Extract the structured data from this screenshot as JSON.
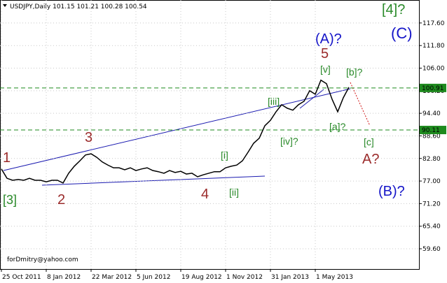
{
  "chart_data": {
    "type": "line",
    "title": "USDJPY,Daily 101.15 101.21 100.28 100.54",
    "credit": "forDmitry@yahoo.com",
    "categories": [
      "25 Oct 2011",
      null,
      null,
      null,
      null,
      null,
      null,
      null,
      "8 Jan 2012",
      null,
      null,
      null,
      null,
      null,
      null,
      null,
      "22 Mar 2012",
      null,
      null,
      null,
      null,
      null,
      null,
      null,
      "5 Jun 2012",
      null,
      null,
      null,
      null,
      null,
      null,
      null,
      "19 Aug 2012",
      null,
      null,
      null,
      null,
      null,
      null,
      null,
      "1 Nov 2012",
      null,
      null,
      null,
      null,
      null,
      null,
      null,
      "31 Jan 2013",
      null,
      null,
      null,
      null,
      null,
      null,
      null,
      "1 May 2013",
      null,
      null,
      null,
      null,
      null,
      null
    ],
    "values": [
      80.1,
      77.7,
      77.2,
      77.4,
      77.2,
      77.7,
      77.2,
      77.2,
      76.8,
      77.2,
      77.2,
      76.5,
      79.0,
      80.8,
      82.2,
      83.7,
      84.0,
      83.1,
      81.9,
      81.1,
      80.4,
      80.4,
      79.9,
      80.4,
      79.7,
      80.1,
      80.4,
      79.7,
      79.4,
      79.0,
      79.7,
      79.2,
      79.5,
      78.8,
      79.0,
      78.1,
      78.6,
      79.0,
      79.4,
      79.4,
      80.4,
      80.8,
      81.1,
      82.2,
      84.4,
      86.7,
      88.0,
      91.2,
      92.6,
      94.8,
      96.6,
      95.7,
      95.2,
      96.6,
      97.5,
      100.2,
      99.3,
      102.9,
      102.0,
      98.0,
      94.8,
      98.4,
      101.1
    ],
    "color": "#000000",
    "ylim": [
      54.4,
      123.5
    ],
    "yticks": [
      {
        "value": 59.6,
        "label": "59.60"
      },
      {
        "value": 65.4,
        "label": "65.40"
      },
      {
        "value": 71.2,
        "label": "71.20"
      },
      {
        "value": 77,
        "label": "77.00"
      },
      {
        "value": 82.8,
        "label": "82.80"
      },
      {
        "value": 88.6,
        "label": "88.60"
      },
      {
        "value": 94.4,
        "label": "94.40"
      },
      {
        "value": 100.2,
        "label": "100.20"
      },
      {
        "value": 106,
        "label": "106.00"
      },
      {
        "value": 111.8,
        "label": "111.80"
      },
      {
        "value": 117.6,
        "label": "117.60"
      }
    ],
    "grid": true,
    "hlines": [
      {
        "value": 100.91,
        "color": "#1e8a1e"
      },
      {
        "value": 90.11,
        "color": "#1e8a1e"
      }
    ],
    "annotations": [
      {
        "text": "[4]?",
        "color": "#2a8a2a"
      },
      {
        "text": "(C)",
        "color": "#1515c8"
      },
      {
        "text": "(A)?",
        "color": "#1515c8"
      },
      {
        "text": "5",
        "color": "#9b2b2b"
      },
      {
        "text": "[v]",
        "color": "#2a8a2a"
      },
      {
        "text": "[b]?",
        "color": "#2a8a2a"
      },
      {
        "text": "[iii]",
        "color": "#2a8a2a"
      },
      {
        "text": "[iv]?",
        "color": "#2a8a2a"
      },
      {
        "text": "[a]?",
        "color": "#2a8a2a"
      },
      {
        "text": "[c]",
        "color": "#2a8a2a"
      },
      {
        "text": "A?",
        "color": "#9b2b2b"
      },
      {
        "text": "3",
        "color": "#9b2b2b"
      },
      {
        "text": "1",
        "color": "#9b2b2b"
      },
      {
        "text": "[3]",
        "color": "#2a8a2a"
      },
      {
        "text": "2",
        "color": "#9b2b2b"
      },
      {
        "text": "[i]",
        "color": "#2a8a2a"
      },
      {
        "text": "[ii]",
        "color": "#2a8a2a"
      },
      {
        "text": "4",
        "color": "#9b2b2b"
      },
      {
        "text": "(B)?",
        "color": "#1515c8"
      }
    ]
  }
}
